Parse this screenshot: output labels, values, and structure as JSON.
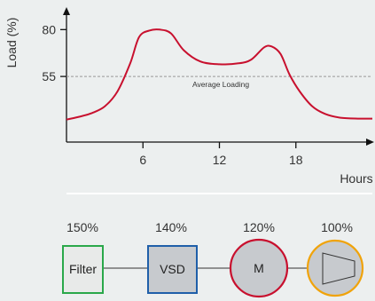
{
  "chart_data": {
    "type": "line",
    "xlabel": "Hours",
    "ylabel": "Load (%)",
    "xlim": [
      0,
      24
    ],
    "ylim": [
      20,
      92
    ],
    "x_ticks": [
      6,
      12,
      18
    ],
    "y_ticks": [
      80,
      55
    ],
    "reference_line": {
      "label": "Average Loading",
      "value": 55
    },
    "series": [
      {
        "color": "#c8102e",
        "points": [
          [
            0,
            32
          ],
          [
            1,
            33.5
          ],
          [
            2,
            35.5
          ],
          [
            3,
            39
          ],
          [
            4,
            47
          ],
          [
            5,
            62
          ],
          [
            5.7,
            76
          ],
          [
            6.5,
            79.5
          ],
          [
            7.3,
            80
          ],
          [
            8.2,
            78
          ],
          [
            9.2,
            69
          ],
          [
            10.5,
            63
          ],
          [
            12,
            61.5
          ],
          [
            13.5,
            62
          ],
          [
            14.5,
            64
          ],
          [
            15.5,
            70.5
          ],
          [
            16.1,
            71
          ],
          [
            16.8,
            67
          ],
          [
            17.5,
            56
          ],
          [
            18.3,
            47
          ],
          [
            19.3,
            39
          ],
          [
            20.3,
            35
          ],
          [
            21.5,
            33
          ],
          [
            23,
            32.5
          ],
          [
            24,
            32.5
          ]
        ]
      }
    ]
  },
  "components": [
    {
      "label": "Filter",
      "percent": "150%",
      "shape": "box",
      "fill": "#e8eae9",
      "stroke": "#2aa84a"
    },
    {
      "label": "VSD",
      "percent": "140%",
      "shape": "box",
      "fill": "#c7cace",
      "stroke": "#1f5fa9"
    },
    {
      "label": "M",
      "percent": "120%",
      "shape": "circle",
      "fill": "#c7cace",
      "stroke": "#c8102e"
    },
    {
      "label": "",
      "percent": "100%",
      "shape": "pump-icon",
      "fill": "#c7cace",
      "stroke": "#f0a30a"
    }
  ]
}
